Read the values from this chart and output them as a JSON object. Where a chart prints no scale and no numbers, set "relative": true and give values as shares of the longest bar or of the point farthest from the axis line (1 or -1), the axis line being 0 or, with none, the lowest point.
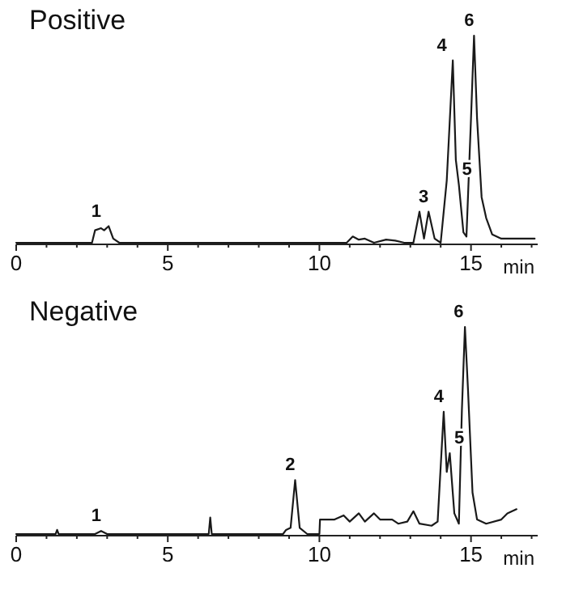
{
  "chart_data": [
    {
      "type": "line",
      "title": "Positive",
      "xlabel": "min",
      "relative": true,
      "xlim": [
        0,
        17.2
      ],
      "xticks": [
        0,
        {
          "value": 1,
          "label": null
        },
        {
          "value": 2,
          "label": null
        },
        {
          "value": 3,
          "label": null
        },
        {
          "value": 4,
          "label": null
        },
        5,
        {
          "value": 6,
          "label": null
        },
        {
          "value": 7,
          "label": null
        },
        {
          "value": 8,
          "label": null
        },
        {
          "value": 9,
          "label": null
        },
        10,
        {
          "value": 11,
          "label": null
        },
        {
          "value": 12,
          "label": null
        },
        {
          "value": 13,
          "label": null
        },
        {
          "value": 14,
          "label": null
        },
        15,
        {
          "value": 16,
          "label": null
        },
        {
          "value": 17,
          "label": null
        }
      ],
      "grid": false,
      "marker": "none",
      "line_style": "solid",
      "series": [
        {
          "color": "#1a1a1a",
          "x": [
            0,
            2.5,
            2.6,
            2.8,
            2.9,
            3.05,
            3.2,
            3.4,
            10.9,
            11.1,
            11.3,
            11.5,
            11.8,
            12.2,
            12.5,
            12.8,
            13.1,
            13.3,
            13.45,
            13.6,
            13.8,
            14.0,
            14.2,
            14.4,
            14.5,
            14.6,
            14.75,
            14.85,
            15.0,
            15.1,
            15.2,
            15.35,
            15.5,
            15.7,
            16.0,
            17.1
          ],
          "values": [
            0,
            0,
            0.06,
            0.07,
            0.06,
            0.08,
            0.02,
            0,
            0,
            0.03,
            0.015,
            0.02,
            0,
            0.015,
            0.01,
            0,
            0,
            0.15,
            0.02,
            0.15,
            0.02,
            0,
            0.3,
            0.88,
            0.4,
            0.28,
            0.05,
            0.03,
            0.6,
            1,
            0.6,
            0.22,
            0.12,
            0.04,
            0.02,
            0.02
          ]
        }
      ],
      "annotations": [
        {
          "text": "1",
          "x": 2.8,
          "y": 0.08
        },
        {
          "text": "3",
          "x": 13.6,
          "y": 0.15
        },
        {
          "text": "4",
          "x": 14.2,
          "y": 0.88
        },
        {
          "text": "5",
          "x": 14.65,
          "y": 0.28
        },
        {
          "text": "6",
          "x": 15.1,
          "y": 1
        }
      ]
    },
    {
      "type": "line",
      "title": "Negative",
      "xlabel": "min",
      "relative": true,
      "xlim": [
        0,
        17.2
      ],
      "xticks": [
        0,
        {
          "value": 1,
          "label": null
        },
        {
          "value": 2,
          "label": null
        },
        {
          "value": 3,
          "label": null
        },
        {
          "value": 4,
          "label": null
        },
        5,
        {
          "value": 6,
          "label": null
        },
        {
          "value": 7,
          "label": null
        },
        {
          "value": 8,
          "label": null
        },
        {
          "value": 9,
          "label": null
        },
        10,
        {
          "value": 11,
          "label": null
        },
        {
          "value": 12,
          "label": null
        },
        {
          "value": 13,
          "label": null
        },
        {
          "value": 14,
          "label": null
        },
        15,
        {
          "value": 16,
          "label": null
        },
        {
          "value": 17,
          "label": null
        }
      ],
      "grid": false,
      "marker": "none",
      "line_style": "solid",
      "series": [
        {
          "color": "#1a1a1a",
          "x": [
            0,
            1.3,
            1.35,
            1.4,
            2.6,
            2.8,
            3.0,
            6.35,
            6.4,
            6.45,
            8.8,
            8.9,
            9.05,
            9.2,
            9.35,
            9.6,
            10.0,
            10.02,
            10.5,
            10.8,
            11.0,
            11.3,
            11.5,
            11.8,
            12.0,
            12.4,
            12.6,
            12.9,
            13.1,
            13.3,
            13.7,
            13.9,
            14.1,
            14.2,
            14.3,
            14.45,
            14.6,
            14.7,
            14.8,
            14.9,
            15.05,
            15.2,
            15.5,
            16.0,
            16.2,
            16.5
          ],
          "values": [
            0,
            0,
            0.02,
            0,
            0,
            0.015,
            0,
            0,
            0.08,
            0,
            0,
            0.02,
            0.03,
            0.26,
            0.03,
            0,
            0,
            0.07,
            0.07,
            0.09,
            0.06,
            0.1,
            0.06,
            0.1,
            0.07,
            0.07,
            0.05,
            0.06,
            0.11,
            0.05,
            0.04,
            0.06,
            0.59,
            0.3,
            0.39,
            0.1,
            0.05,
            0.6,
            1,
            0.7,
            0.2,
            0.07,
            0.05,
            0.07,
            0.1,
            0.12
          ]
        }
      ],
      "annotations": [
        {
          "text": "1",
          "x": 2.8,
          "y": 0.015
        },
        {
          "text": "2",
          "x": 9.2,
          "y": 0.26
        },
        {
          "text": "4",
          "x": 14.1,
          "y": 0.59
        },
        {
          "text": "5",
          "x": 14.4,
          "y": 0.39
        },
        {
          "text": "6",
          "x": 14.75,
          "y": 1
        }
      ]
    }
  ]
}
